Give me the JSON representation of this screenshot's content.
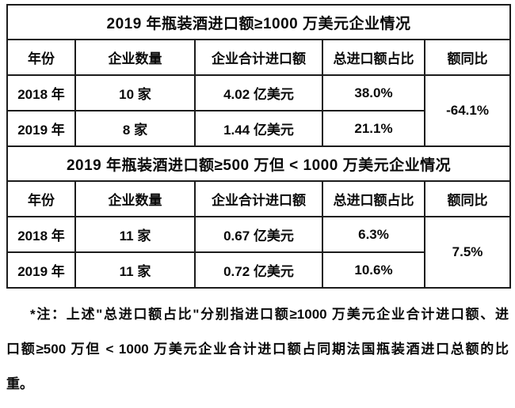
{
  "page": {
    "background_color": "#ffffff",
    "text_color": "#0a0a0a",
    "border_color": "#1c1c1c"
  },
  "tables": [
    {
      "title": "2019 年瓶装酒进口额≥1000 万美元企业情况",
      "columns": [
        "年份",
        "企业数量",
        "企业合计进口额",
        "总进口额占比",
        "额同比"
      ],
      "rows": [
        {
          "year": "2018 年",
          "count": "10 家",
          "total": "4.02 亿美元",
          "share": "38.0%"
        },
        {
          "year": "2019 年",
          "count": "8 家",
          "total": "1.44 亿美元",
          "share": "21.1%"
        }
      ],
      "yoy": "-64.1%"
    },
    {
      "title": "2019 年瓶装酒进口额≥500 万但 < 1000 万美元企业情况",
      "columns": [
        "年份",
        "企业数量",
        "企业合计进口额",
        "总进口额占比",
        "额同比"
      ],
      "rows": [
        {
          "year": "2018 年",
          "count": "11 家",
          "total": "0.67 亿美元",
          "share": "6.3%"
        },
        {
          "year": "2019 年",
          "count": "11 家",
          "total": "0.72 亿美元",
          "share": "10.6%"
        }
      ],
      "yoy": "7.5%"
    }
  ],
  "footnote": {
    "lines": [
      "*注：上述\"总进口额占比\"分别指进口额≥1000 万美元企业合计进口额、进",
      "口额≥500 万但 < 1000 万美元企业合计进口额占同期法国瓶装酒进口总额的比",
      "重。"
    ]
  }
}
